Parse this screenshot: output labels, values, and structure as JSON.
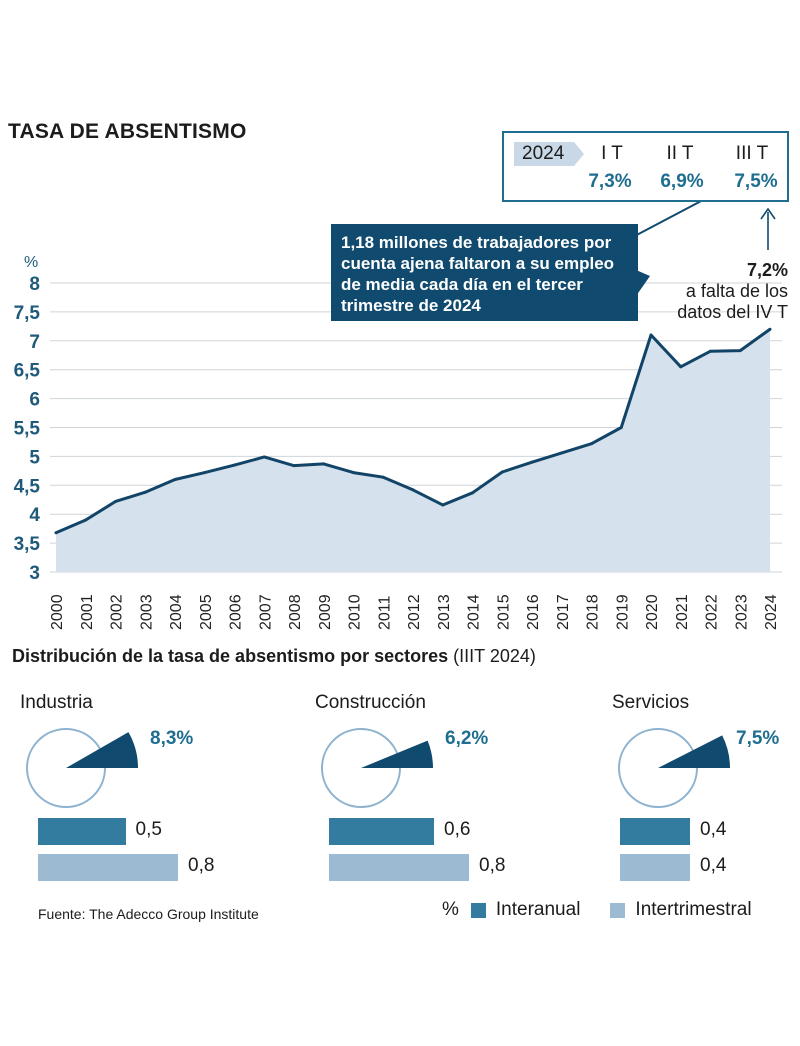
{
  "title": "TASA DE ABSENTISMO",
  "quarters": {
    "year": "2024",
    "items": [
      {
        "label": "I T",
        "value": "7,3%"
      },
      {
        "label": "II T",
        "value": "6,9%"
      },
      {
        "label": "III T",
        "value": "7,5%"
      }
    ]
  },
  "note": "1,18 millones de trabajadores por cuenta ajena faltaron a su empleo de media cada día en el tercer trimestre de 2024",
  "last_value": "7,2%",
  "last_value_note": "a falta de los datos del  IV T",
  "chart_data": {
    "type": "area",
    "title": "TASA DE ABSENTISMO",
    "ylabel": "%",
    "ylim": [
      3,
      8
    ],
    "yticks": [
      "3",
      "3,5",
      "4",
      "4,5",
      "5",
      "5,5",
      "6",
      "6,5",
      "7",
      "7,5",
      "8"
    ],
    "ytick_values": [
      3,
      3.5,
      4,
      4.5,
      5,
      5.5,
      6,
      6.5,
      7,
      7.5,
      8
    ],
    "categories": [
      "2000",
      "2001",
      "2002",
      "2003",
      "2004",
      "2005",
      "2006",
      "2007",
      "2008",
      "2009",
      "2010",
      "2011",
      "2012",
      "2013",
      "2014",
      "2015",
      "2016",
      "2017",
      "2018",
      "2019",
      "2020",
      "2021",
      "2022",
      "2023",
      "2024"
    ],
    "values": [
      3.68,
      3.9,
      4.22,
      4.38,
      4.6,
      4.72,
      4.85,
      4.99,
      4.84,
      4.87,
      4.72,
      4.64,
      4.42,
      4.16,
      4.37,
      4.73,
      4.9,
      5.06,
      5.22,
      5.5,
      7.1,
      6.55,
      6.82,
      6.83,
      7.2
    ],
    "grid": true
  },
  "distribution": {
    "title_bold": "Distribución de la tasa de absentismo por sectores",
    "title_normal": "(IIIT 2024)",
    "sectors": [
      {
        "name": "Industria",
        "value": "8,3%",
        "pct": 8.3,
        "interanual": 0.5,
        "interanual_label": "0,5",
        "intertrimestral": 0.8,
        "intertrimestral_label": "0,8"
      },
      {
        "name": "Construcción",
        "value": "6,2%",
        "pct": 6.2,
        "interanual": 0.6,
        "interanual_label": "0,6",
        "intertrimestral": 0.8,
        "intertrimestral_label": "0,8"
      },
      {
        "name": "Servicios",
        "value": "7,5%",
        "pct": 7.5,
        "interanual": 0.4,
        "interanual_label": "0,4",
        "intertrimestral": 0.4,
        "intertrimestral_label": "0,4"
      }
    ]
  },
  "source": "Fuente: The Adecco Group Institute",
  "legend": {
    "unit": "%",
    "dark": "Interanual",
    "light": "Intertrimestral"
  },
  "colors": {
    "dark_navy": "#104a6e",
    "line": "#124468",
    "area": "#d5e1ec",
    "accent": "#1f6e8f",
    "bar_dark": "#347c9f",
    "bar_light": "#9cbad1"
  }
}
